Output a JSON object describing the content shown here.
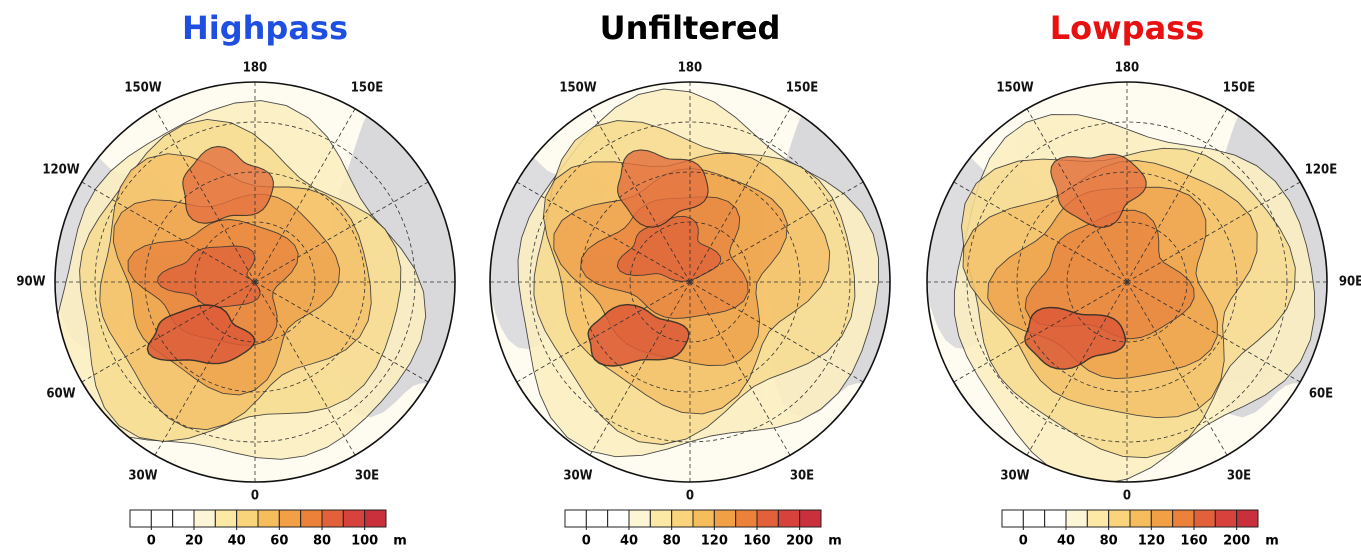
{
  "panels": [
    {
      "title": "Highpass",
      "title_color": "#1f4fe0",
      "longitude_labels": [
        "180",
        "150W",
        "150E",
        "120W",
        "90W",
        "60W",
        "30W",
        "30E",
        "0"
      ],
      "colorbar": {
        "lim": [
          -10,
          110
        ],
        "ticks": [
          0,
          20,
          40,
          60,
          80,
          100
        ],
        "unit": "m",
        "colors": [
          "#ffffff",
          "#ffffff",
          "#ffffff",
          "#fdf6d6",
          "#fce9a6",
          "#f9d47a",
          "#f6bd5c",
          "#f2a046",
          "#ec8139",
          "#e3613a",
          "#d7433c",
          "#c9303b"
        ]
      }
    },
    {
      "title": "Unfiltered",
      "title_color": "#000000",
      "longitude_labels": [
        "180",
        "150W",
        "150E",
        "30W",
        "30E",
        "0"
      ],
      "colorbar": {
        "lim": [
          -20,
          220
        ],
        "ticks": [
          0,
          40,
          80,
          120,
          160,
          200
        ],
        "unit": "m",
        "colors": [
          "#ffffff",
          "#ffffff",
          "#ffffff",
          "#fdf6d6",
          "#fce9a6",
          "#f9d47a",
          "#f6bd5c",
          "#f2a046",
          "#ec8139",
          "#e3613a",
          "#d7433c",
          "#c9303b"
        ]
      }
    },
    {
      "title": "Lowpass",
      "title_color": "#e81010",
      "longitude_labels": [
        "180",
        "150W",
        "150E",
        "120E",
        "90E",
        "60E",
        "30W",
        "30E",
        "0"
      ],
      "colorbar": {
        "lim": [
          -20,
          220
        ],
        "ticks": [
          0,
          40,
          80,
          120,
          160,
          200
        ],
        "unit": "m",
        "colors": [
          "#ffffff",
          "#ffffff",
          "#ffffff",
          "#fdf6d6",
          "#fce9a6",
          "#f9d47a",
          "#f6bd5c",
          "#f2a046",
          "#ec8139",
          "#e3613a",
          "#d7433c",
          "#c9303b"
        ]
      }
    }
  ]
}
